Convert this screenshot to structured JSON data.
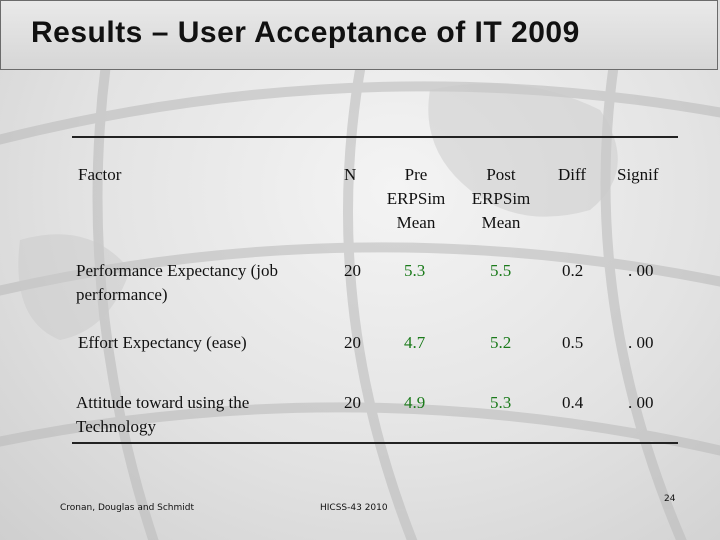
{
  "title": "Results – User Acceptance of IT 2009",
  "table": {
    "headers": {
      "factor": "Factor",
      "n": "N",
      "pre": [
        "Pre",
        "ERPSim",
        "Mean"
      ],
      "post": [
        "Post",
        "ERPSim",
        "Mean"
      ],
      "diff": "Diff",
      "signif": "Signif"
    },
    "rows": [
      {
        "factor": [
          "Performance Expectancy (job",
          "performance)"
        ],
        "n": "20",
        "pre": "5.3",
        "post": "5.5",
        "diff": "0.2",
        "signif": ". 00"
      },
      {
        "factor": [
          "Effort Expectancy (ease)"
        ],
        "n": "20",
        "pre": "4.7",
        "post": "5.2",
        "diff": "0.5",
        "signif": ". 00"
      },
      {
        "factor": [
          "Attitude toward using the",
          "Technology"
        ],
        "n": "20",
        "pre": "4.9",
        "post": "5.3",
        "diff": "0.4",
        "signif": ". 00"
      }
    ]
  },
  "footer": {
    "authors": "Cronan, Douglas and Schmidt",
    "conference": "HICSS-43 2010",
    "page_number": "24"
  },
  "colors": {
    "accent_green": "#1a7a1a",
    "text": "#111111"
  }
}
